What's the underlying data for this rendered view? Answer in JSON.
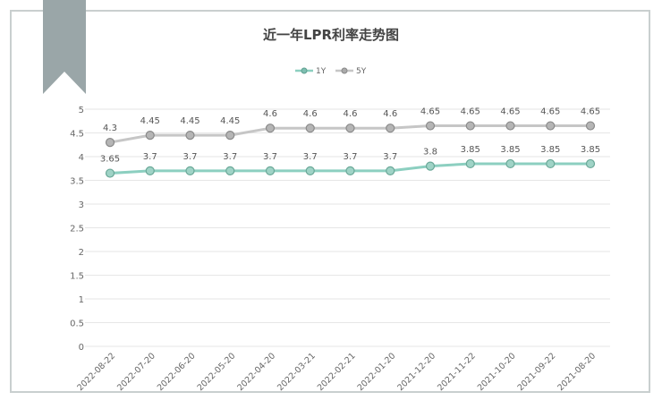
{
  "chart_data": {
    "type": "line",
    "title": "近一年LPR利率走势图",
    "categories": [
      "2022-08-22",
      "2022-07-20",
      "2022-06-20",
      "2022-05-20",
      "2022-04-20",
      "2022-03-21",
      "2022-02-21",
      "2022-01-20",
      "2021-12-20",
      "2021-11-22",
      "2021-10-20",
      "2021-09-22",
      "2021-08-20"
    ],
    "series": [
      {
        "name": "1Y",
        "color": "#8ccfc0",
        "values": [
          3.65,
          3.7,
          3.7,
          3.7,
          3.7,
          3.7,
          3.7,
          3.7,
          3.8,
          3.85,
          3.85,
          3.85,
          3.85
        ]
      },
      {
        "name": "5Y",
        "color": "#c6c6c6",
        "values": [
          4.3,
          4.45,
          4.45,
          4.45,
          4.6,
          4.6,
          4.6,
          4.6,
          4.65,
          4.65,
          4.65,
          4.65,
          4.65
        ]
      }
    ],
    "yticks": [
      0,
      0.5,
      1,
      1.5,
      2,
      2.5,
      3,
      3.5,
      4,
      4.5,
      5
    ],
    "ylim": [
      0,
      5
    ],
    "legend": "top-center",
    "grid": true
  }
}
